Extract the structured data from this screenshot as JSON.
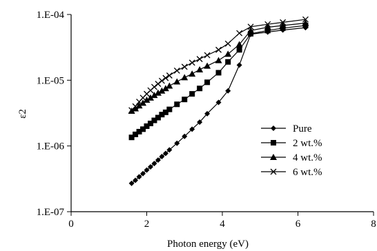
{
  "chart_data": {
    "type": "line",
    "xlabel": "Photon energy (eV)",
    "ylabel": "ε2",
    "xlim": [
      0,
      8
    ],
    "ylim": [
      1e-07,
      0.0001
    ],
    "yscale": "log",
    "grid": false,
    "legend_position": "right-center",
    "x_ticks": [
      {
        "value": 0,
        "label": "0"
      },
      {
        "value": 2,
        "label": "2"
      },
      {
        "value": 4,
        "label": "4"
      },
      {
        "value": 6,
        "label": "6"
      },
      {
        "value": 8,
        "label": "8"
      }
    ],
    "y_ticks": [
      {
        "value": 1e-07,
        "label": "1.E-07"
      },
      {
        "value": 1e-06,
        "label": "1.E-06"
      },
      {
        "value": 1e-05,
        "label": "1.E-05"
      },
      {
        "value": 0.0001,
        "label": "1.E-04"
      }
    ],
    "series": [
      {
        "name": "Pure",
        "marker": "diamond",
        "color": "#000000",
        "x": [
          1.6,
          1.7,
          1.8,
          1.9,
          2.0,
          2.1,
          2.2,
          2.3,
          2.4,
          2.5,
          2.6,
          2.8,
          3.0,
          3.2,
          3.4,
          3.6,
          3.9,
          4.15,
          4.45,
          4.75,
          5.2,
          5.6,
          6.2
        ],
        "y": [
          2.7e-07,
          3e-07,
          3.4e-07,
          3.8e-07,
          4.3e-07,
          4.8e-07,
          5.4e-07,
          6.1e-07,
          6.9e-07,
          7.7e-07,
          8.7e-07,
          1.1e-06,
          1.4e-06,
          1.8e-06,
          2.3e-06,
          3.1e-06,
          4.6e-06,
          6.9e-06,
          1.7e-05,
          5e-05,
          5.4e-05,
          5.8e-05,
          6.3e-05
        ]
      },
      {
        "name": "2 wt.%",
        "marker": "square",
        "color": "#000000",
        "x": [
          1.6,
          1.7,
          1.8,
          1.9,
          2.0,
          2.1,
          2.2,
          2.3,
          2.4,
          2.5,
          2.6,
          2.8,
          3.0,
          3.2,
          3.4,
          3.6,
          3.9,
          4.15,
          4.45,
          4.75,
          5.2,
          5.6,
          6.2
        ],
        "y": [
          1.35e-06,
          1.5e-06,
          1.65e-06,
          1.8e-06,
          2e-06,
          2.2e-06,
          2.45e-06,
          2.7e-06,
          3e-06,
          3.25e-06,
          3.6e-06,
          4.3e-06,
          5.1e-06,
          6.2e-06,
          7.5e-06,
          9.3e-06,
          1.3e-05,
          1.9e-05,
          2.9e-05,
          5.1e-05,
          5.7e-05,
          6.2e-05,
          6.8e-05
        ]
      },
      {
        "name": "4 wt.%",
        "marker": "triangle",
        "color": "#000000",
        "x": [
          1.6,
          1.7,
          1.8,
          1.9,
          2.0,
          2.1,
          2.2,
          2.3,
          2.4,
          2.5,
          2.6,
          2.8,
          3.0,
          3.2,
          3.4,
          3.6,
          3.9,
          4.15,
          4.45,
          4.75,
          5.2,
          5.6,
          6.2
        ],
        "y": [
          3.4e-06,
          3.7e-06,
          4.1e-06,
          4.5e-06,
          5e-06,
          5.4e-06,
          5.9e-06,
          6.4e-06,
          6.9e-06,
          7.5e-06,
          8.2e-06,
          9.5e-06,
          1.1e-05,
          1.25e-05,
          1.45e-05,
          1.65e-05,
          2e-05,
          2.5e-05,
          3.5e-05,
          5.7e-05,
          6.4e-05,
          6.8e-05,
          7.4e-05
        ]
      },
      {
        "name": "6 wt.%",
        "marker": "x",
        "color": "#000000",
        "x": [
          1.6,
          1.7,
          1.8,
          1.9,
          2.0,
          2.1,
          2.2,
          2.3,
          2.4,
          2.5,
          2.6,
          2.8,
          3.0,
          3.2,
          3.4,
          3.6,
          3.9,
          4.15,
          4.45,
          4.75,
          5.2,
          5.6,
          6.2
        ],
        "y": [
          3.5e-06,
          4e-06,
          4.7e-06,
          5.4e-06,
          6.2e-06,
          7e-06,
          7.9e-06,
          8.8e-06,
          9.8e-06,
          1.08e-05,
          1.18e-05,
          1.4e-05,
          1.6e-05,
          1.85e-05,
          2.1e-05,
          2.4e-05,
          2.9e-05,
          3.6e-05,
          5.2e-05,
          6.5e-05,
          7.1e-05,
          7.6e-05,
          8.4e-05
        ]
      }
    ]
  }
}
